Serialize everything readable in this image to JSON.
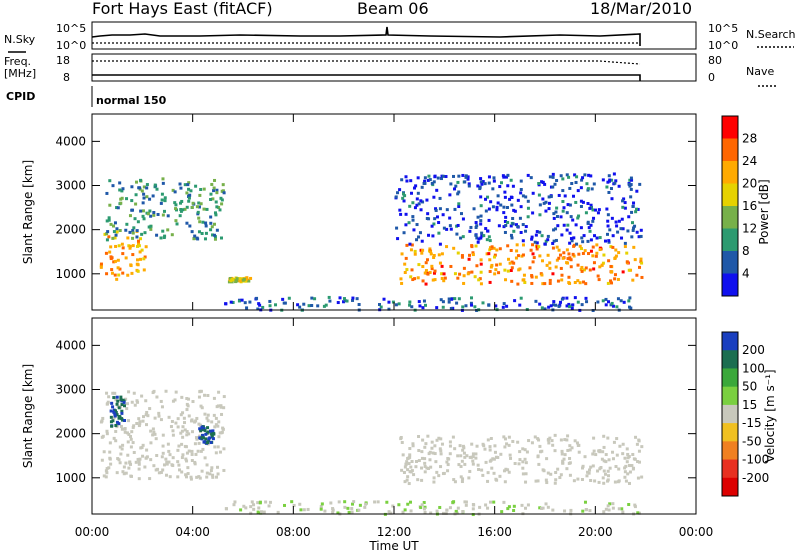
{
  "header": {
    "station": "Fort Hays East (fitACF)",
    "beam": "Beam 06",
    "date": "18/Mar/2010"
  },
  "status_panels": {
    "nsky_label": "N.Sky",
    "nsky_ticks": [
      "10^5",
      "10^0"
    ],
    "nsearch_label": "N.Search",
    "nsearch_ticks": [
      "10^5",
      "10^0"
    ],
    "freq_label": "Freq.",
    "freq_unit": "[MHz]",
    "freq_ticks": [
      "18",
      "8"
    ],
    "nave_label": "Nave",
    "nave_ticks": [
      "80",
      "0"
    ],
    "cpid_label": "CPID",
    "cpid_value": "normal 150"
  },
  "chart_data": [
    {
      "type": "heatmap",
      "name": "Power",
      "ylabel": "Slant Range [km]",
      "yticks": [
        "4000",
        "3000",
        "2000",
        "1000"
      ],
      "ylim": [
        180,
        4620
      ],
      "xticks": [
        "00:00",
        "04:00",
        "08:00",
        "12:00",
        "16:00",
        "20:00",
        "00:00"
      ],
      "xlim_hours": [
        0,
        24
      ],
      "colorbar_label": "Power [dB]",
      "colorbar_ticks": [
        "28",
        "24",
        "20",
        "16",
        "12",
        "8",
        "4"
      ],
      "colorbar_colors": [
        "#ff0000",
        "#ff6600",
        "#ffaa00",
        "#e6d200",
        "#77b04a",
        "#2c9a70",
        "#1f58a8",
        "#1010ee"
      ],
      "scatter_regions": [
        {
          "hours": [
            0.3,
            2.1
          ],
          "range_km": [
            900,
            2000
          ],
          "power_db": 24
        },
        {
          "hours": [
            0.5,
            5.2
          ],
          "range_km": [
            1800,
            3200
          ],
          "power_db": 12
        },
        {
          "hours": [
            5.4,
            6.3
          ],
          "range_km": [
            850,
            950
          ],
          "power_db": 20
        },
        {
          "hours": [
            5.2,
            21.8
          ],
          "range_km": [
            200,
            500
          ],
          "power_db": 8
        },
        {
          "hours": [
            12.2,
            21.8
          ],
          "range_km": [
            800,
            1700
          ],
          "power_db": 26
        },
        {
          "hours": [
            12.0,
            21.8
          ],
          "range_km": [
            1700,
            3300
          ],
          "power_db": 6
        }
      ]
    },
    {
      "type": "heatmap",
      "name": "Velocity",
      "ylabel": "Slant Range [km]",
      "yticks": [
        "4000",
        "3000",
        "2000",
        "1000"
      ],
      "ylim": [
        180,
        4620
      ],
      "xticks": [
        "00:00",
        "04:00",
        "08:00",
        "12:00",
        "16:00",
        "20:00",
        "00:00"
      ],
      "xlim_hours": [
        0,
        24
      ],
      "xlabel": "Time UT",
      "colorbar_label": "Velocity [m s⁻¹]",
      "colorbar_ticks": [
        "200",
        "100",
        "50",
        "15",
        "-15",
        "-50",
        "-100",
        "-200"
      ],
      "colorbar_colors": [
        "#1a3fbf",
        "#1b6e50",
        "#3aa83a",
        "#7ad040",
        "#c8c8bc",
        "#f0c020",
        "#f08020",
        "#e83020",
        "#dd0000"
      ],
      "scatter_regions": [
        {
          "hours": [
            0.3,
            5.2
          ],
          "range_km": [
            1000,
            3000
          ],
          "velocity": 0
        },
        {
          "hours": [
            0.7,
            1.3
          ],
          "range_km": [
            2200,
            2900
          ],
          "velocity": 200
        },
        {
          "hours": [
            4.2,
            4.8
          ],
          "range_km": [
            1800,
            2200
          ],
          "velocity": 200
        },
        {
          "hours": [
            12.2,
            21.8
          ],
          "range_km": [
            900,
            2000
          ],
          "velocity": 0
        },
        {
          "hours": [
            5.2,
            21.8
          ],
          "range_km": [
            200,
            500
          ],
          "velocity": 10
        }
      ]
    }
  ]
}
